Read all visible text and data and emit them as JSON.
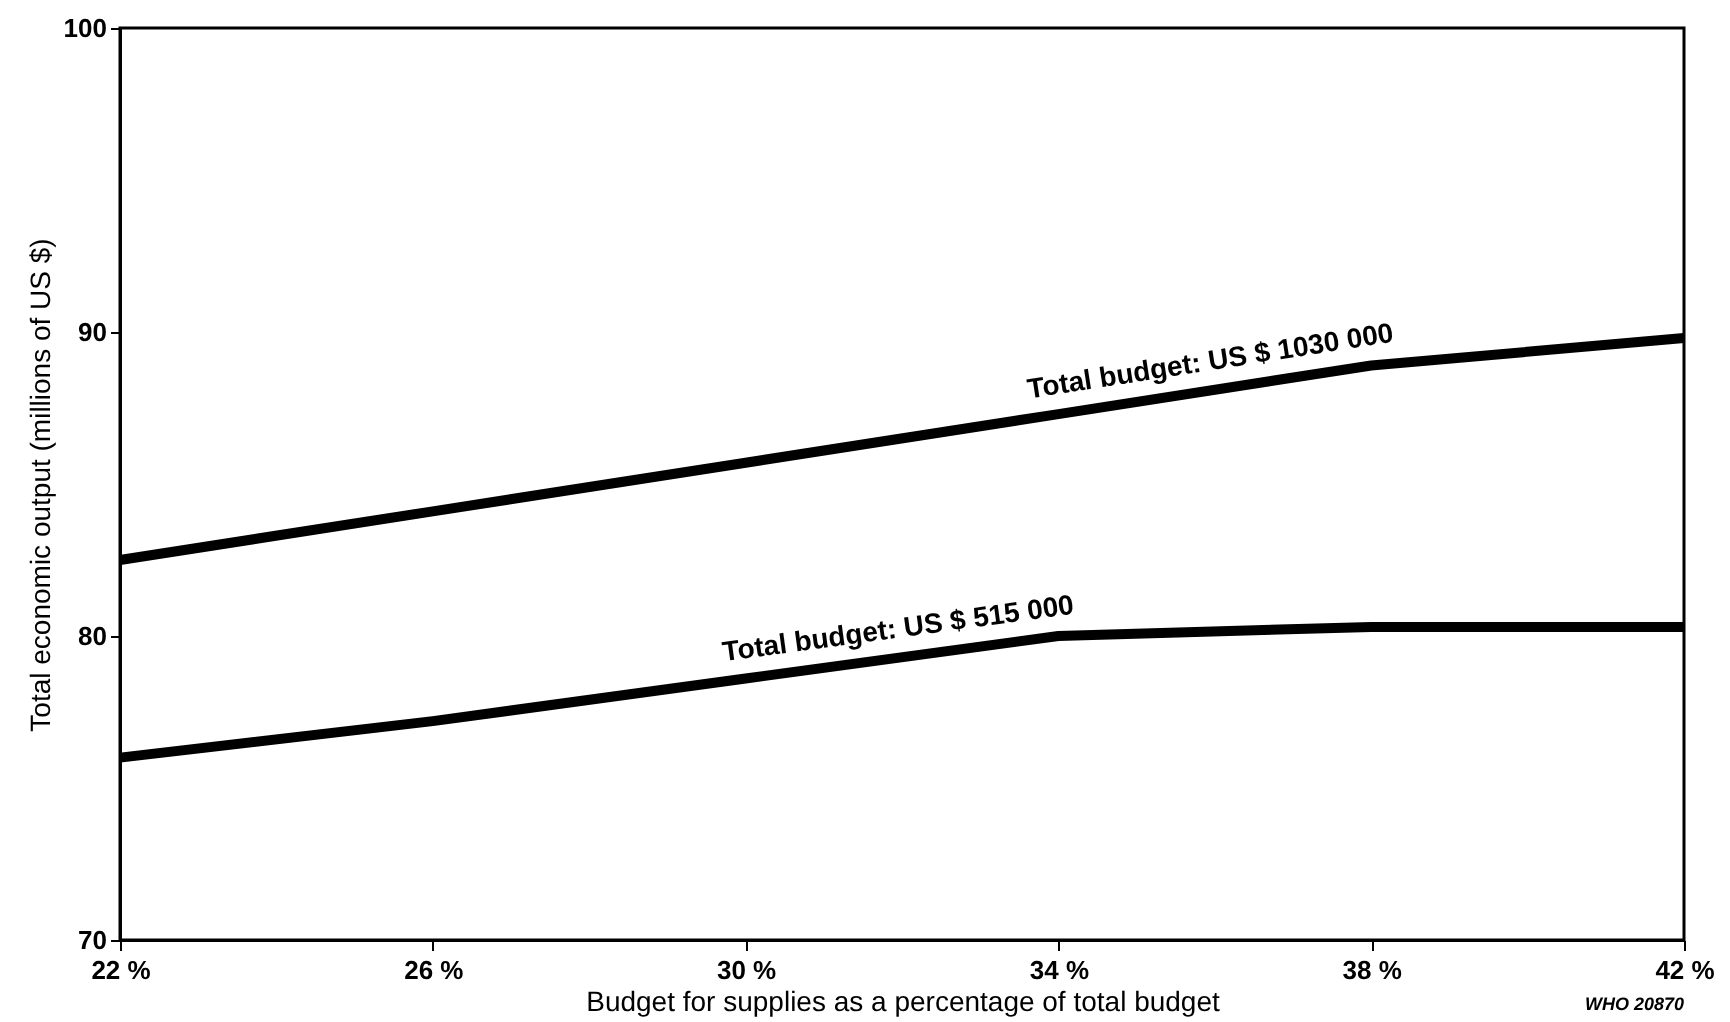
{
  "chart_data": {
    "type": "line",
    "xlabel": "Budget for supplies as a percentage of total budget",
    "ylabel": "Total economic output (millions of US $)",
    "x": [
      22,
      26,
      30,
      34,
      38,
      42
    ],
    "series": [
      {
        "name": "Total budget: US $ 1030 000",
        "color": "#000000",
        "values": [
          82.5,
          84.1,
          85.7,
          87.3,
          88.9,
          89.8
        ]
      },
      {
        "name": "Total budget: US $ 515 000",
        "color": "#000000",
        "values": [
          76.0,
          77.2,
          78.6,
          80.0,
          80.3,
          80.3
        ]
      }
    ],
    "xlim": [
      22,
      42
    ],
    "xticks": [
      {
        "value": 22,
        "label": "22 %"
      },
      {
        "value": 26,
        "label": "26 %"
      },
      {
        "value": 30,
        "label": "30 %"
      },
      {
        "value": 34,
        "label": "34 %"
      },
      {
        "value": 38,
        "label": "38 %"
      },
      {
        "value": 42,
        "label": "42 %"
      }
    ],
    "ylim": [
      70,
      100
    ],
    "yticks": [
      70,
      80,
      90,
      100
    ],
    "grid": false,
    "marker": "none",
    "line_style": "solid",
    "annotations": [
      "WHO 20870"
    ]
  }
}
